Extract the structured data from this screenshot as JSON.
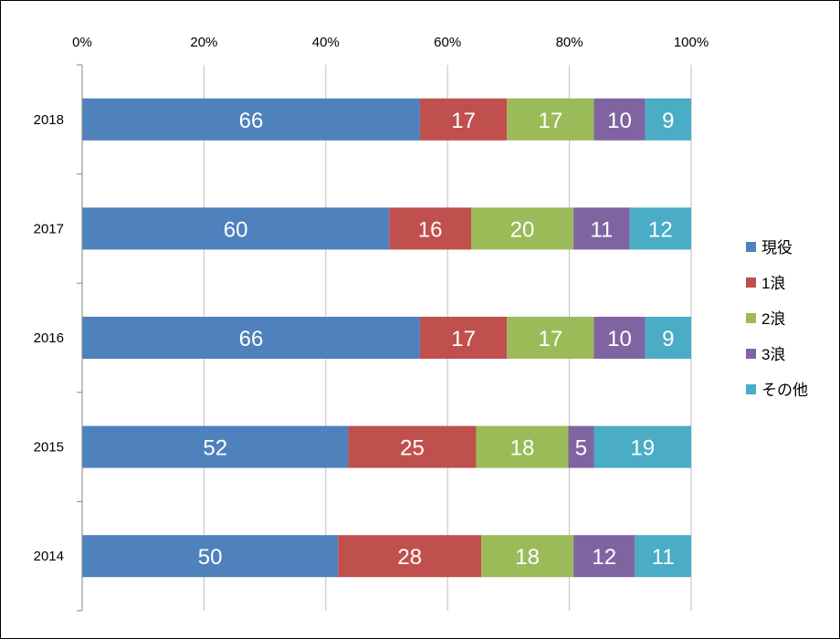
{
  "chart_data": {
    "type": "bar",
    "orientation": "horizontal",
    "stacked": "percent",
    "categories": [
      "2018",
      "2017",
      "2016",
      "2015",
      "2014"
    ],
    "series": [
      {
        "name": "現役",
        "color": "#4F81BD",
        "values": [
          66,
          60,
          66,
          52,
          50
        ]
      },
      {
        "name": "1浪",
        "color": "#C0504D",
        "values": [
          17,
          16,
          17,
          25,
          28
        ]
      },
      {
        "name": "2浪",
        "color": "#9BBB59",
        "values": [
          17,
          20,
          17,
          18,
          18
        ]
      },
      {
        "name": "3浪",
        "color": "#8064A2",
        "values": [
          10,
          11,
          10,
          5,
          12
        ]
      },
      {
        "name": "その他",
        "color": "#4BACC6",
        "values": [
          9,
          12,
          9,
          19,
          11
        ]
      }
    ],
    "xticks": [
      "0%",
      "20%",
      "40%",
      "60%",
      "80%",
      "100%"
    ],
    "xlim": [
      0,
      100
    ],
    "xaxis_position": "top",
    "grid": true,
    "legend_position": "right"
  }
}
